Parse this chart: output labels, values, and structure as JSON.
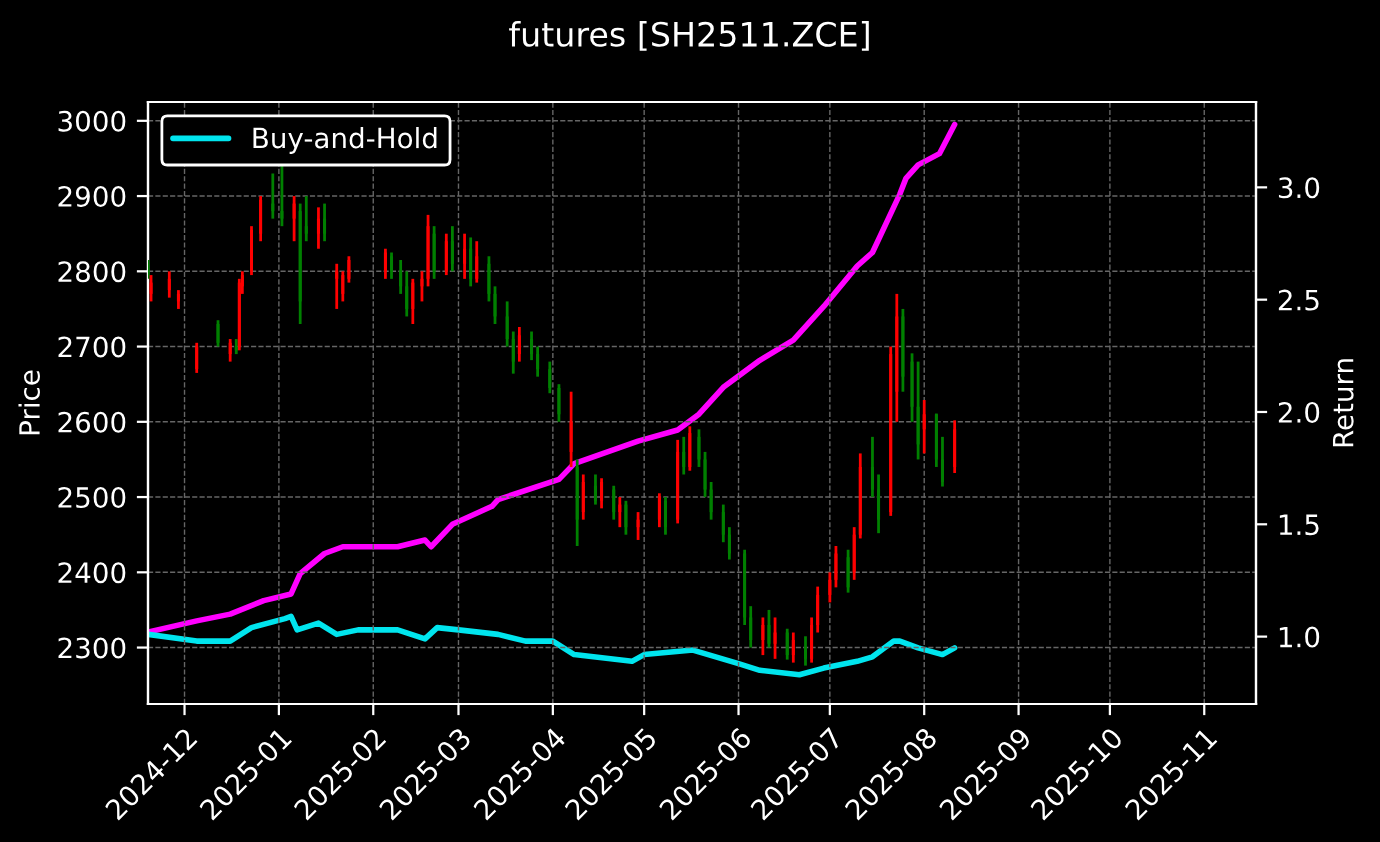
{
  "chart_data": {
    "type": "candlestick",
    "title": "futures [SH2511.ZCE]",
    "ylabel": "Price",
    "y2label": "Return",
    "x": [
      "2024-11-19",
      "2024-11-20",
      "2024-11-26",
      "2024-11-29",
      "2024-12-05",
      "2024-12-12",
      "2024-12-16",
      "2024-12-18",
      "2024-12-19",
      "2024-12-20",
      "2024-12-23",
      "2024-12-26",
      "2024-12-30",
      "2025-01-02",
      "2025-01-06",
      "2025-01-08",
      "2025-01-10",
      "2025-01-14",
      "2025-01-16",
      "2025-01-20",
      "2025-01-22",
      "2025-01-24",
      "2025-02-05",
      "2025-02-07",
      "2025-02-10",
      "2025-02-12",
      "2025-02-14",
      "2025-02-17",
      "2025-02-19",
      "2025-02-21",
      "2025-02-25",
      "2025-02-27",
      "2025-03-03",
      "2025-03-05",
      "2025-03-07",
      "2025-03-11",
      "2025-03-13",
      "2025-03-17",
      "2025-03-19",
      "2025-03-21",
      "2025-03-25",
      "2025-03-27",
      "2025-03-31",
      "2025-04-03",
      "2025-04-07",
      "2025-04-09",
      "2025-04-11",
      "2025-04-15",
      "2025-04-17",
      "2025-04-21",
      "2025-04-23",
      "2025-04-25",
      "2025-04-29",
      "2025-05-06",
      "2025-05-08",
      "2025-05-12",
      "2025-05-14",
      "2025-05-16",
      "2025-05-19",
      "2025-05-21",
      "2025-05-23",
      "2025-05-27",
      "2025-05-29",
      "2025-06-03",
      "2025-06-05",
      "2025-06-09",
      "2025-06-11",
      "2025-06-13",
      "2025-06-17",
      "2025-06-19",
      "2025-06-23",
      "2025-06-25",
      "2025-06-27",
      "2025-07-01",
      "2025-07-03",
      "2025-07-07",
      "2025-07-09",
      "2025-07-11",
      "2025-07-15",
      "2025-07-17",
      "2025-07-21",
      "2025-07-23",
      "2025-07-25",
      "2025-07-28",
      "2025-07-30",
      "2025-08-01",
      "2025-08-05",
      "2025-08-07",
      "2025-08-11"
    ],
    "ohlc": [
      [
        2810,
        2815,
        2790,
        2795
      ],
      [
        2770,
        2795,
        2760,
        2785
      ],
      [
        2775,
        2800,
        2765,
        2790
      ],
      [
        2760,
        2775,
        2750,
        2770
      ],
      [
        2670,
        2705,
        2665,
        2700
      ],
      [
        2730,
        2735,
        2700,
        2705
      ],
      [
        2690,
        2710,
        2680,
        2705
      ],
      [
        2700,
        2710,
        2690,
        2695
      ],
      [
        2700,
        2790,
        2695,
        2785
      ],
      [
        2780,
        2800,
        2770,
        2795
      ],
      [
        2800,
        2860,
        2795,
        2855
      ],
      [
        2850,
        2900,
        2840,
        2895
      ],
      [
        2890,
        2930,
        2870,
        2880
      ],
      [
        2880,
        2940,
        2860,
        2870
      ],
      [
        2870,
        2900,
        2840,
        2890
      ],
      [
        2880,
        2890,
        2730,
        2760
      ],
      [
        2860,
        2900,
        2840,
        2850
      ],
      [
        2850,
        2885,
        2830,
        2870
      ],
      [
        2870,
        2890,
        2840,
        2850
      ],
      [
        2790,
        2810,
        2750,
        2800
      ],
      [
        2770,
        2800,
        2760,
        2795
      ],
      [
        2790,
        2820,
        2785,
        2815
      ],
      [
        2800,
        2830,
        2790,
        2825
      ],
      [
        2820,
        2825,
        2790,
        2800
      ],
      [
        2800,
        2815,
        2770,
        2780
      ],
      [
        2780,
        2800,
        2740,
        2750
      ],
      [
        2750,
        2790,
        2730,
        2785
      ],
      [
        2780,
        2800,
        2760,
        2790
      ],
      [
        2790,
        2875,
        2780,
        2860
      ],
      [
        2850,
        2860,
        2790,
        2800
      ],
      [
        2800,
        2850,
        2795,
        2840
      ],
      [
        2840,
        2860,
        2800,
        2810
      ],
      [
        2810,
        2850,
        2790,
        2830
      ],
      [
        2830,
        2845,
        2780,
        2790
      ],
      [
        2790,
        2840,
        2785,
        2820
      ],
      [
        2810,
        2820,
        2760,
        2770
      ],
      [
        2770,
        2780,
        2730,
        2740
      ],
      [
        2740,
        2760,
        2700,
        2710
      ],
      [
        2710,
        2720,
        2664,
        2680
      ],
      [
        2690,
        2726,
        2680,
        2715
      ],
      [
        2710,
        2720,
        2682,
        2690
      ],
      [
        2690,
        2700,
        2660,
        2670
      ],
      [
        2670,
        2680,
        2638,
        2645
      ],
      [
        2645,
        2650,
        2600,
        2610
      ],
      [
        2560,
        2640,
        2540,
        2600
      ],
      [
        2540,
        2550,
        2435,
        2470
      ],
      [
        2480,
        2530,
        2470,
        2520
      ],
      [
        2515,
        2530,
        2490,
        2495
      ],
      [
        2495,
        2525,
        2485,
        2520
      ],
      [
        2510,
        2515,
        2470,
        2480
      ],
      [
        2480,
        2500,
        2460,
        2490
      ],
      [
        2490,
        2495,
        2450,
        2460
      ],
      [
        2460,
        2480,
        2443,
        2470
      ],
      [
        2470,
        2505,
        2460,
        2500
      ],
      [
        2495,
        2500,
        2450,
        2460
      ],
      [
        2470,
        2576,
        2465,
        2560
      ],
      [
        2560,
        2580,
        2530,
        2540
      ],
      [
        2540,
        2594,
        2535,
        2585
      ],
      [
        2580,
        2590,
        2540,
        2550
      ],
      [
        2550,
        2560,
        2500,
        2510
      ],
      [
        2510,
        2520,
        2470,
        2480
      ],
      [
        2480,
        2490,
        2440,
        2450
      ],
      [
        2450,
        2460,
        2417,
        2425
      ],
      [
        2425,
        2430,
        2330,
        2340
      ],
      [
        2340,
        2355,
        2300,
        2310
      ],
      [
        2310,
        2340,
        2290,
        2330
      ],
      [
        2330,
        2350,
        2300,
        2305
      ],
      [
        2305,
        2340,
        2285,
        2320
      ],
      [
        2320,
        2325,
        2284,
        2290
      ],
      [
        2290,
        2320,
        2280,
        2310
      ],
      [
        2300,
        2315,
        2276,
        2285
      ],
      [
        2285,
        2340,
        2280,
        2330
      ],
      [
        2330,
        2381,
        2320,
        2370
      ],
      [
        2370,
        2400,
        2360,
        2390
      ],
      [
        2390,
        2435,
        2380,
        2425
      ],
      [
        2420,
        2430,
        2373,
        2380
      ],
      [
        2400,
        2460,
        2390,
        2450
      ],
      [
        2450,
        2558,
        2445,
        2540
      ],
      [
        2540,
        2580,
        2500,
        2510
      ],
      [
        2510,
        2530,
        2452,
        2470
      ],
      [
        2480,
        2700,
        2475,
        2690
      ],
      [
        2640,
        2770,
        2600,
        2740
      ],
      [
        2740,
        2750,
        2640,
        2660
      ],
      [
        2680,
        2691,
        2600,
        2620
      ],
      [
        2620,
        2680,
        2550,
        2570
      ],
      [
        2590,
        2629,
        2558,
        2610
      ],
      [
        2610,
        2611,
        2540,
        2550
      ],
      [
        2550,
        2580,
        2514,
        2520
      ],
      [
        2540,
        2602,
        2532,
        2590
      ]
    ],
    "colors": [
      "#008000",
      "#ff0000",
      "#ff0000",
      "#ff0000",
      "#ff0000",
      "#008000",
      "#ff0000",
      "#008000",
      "#ff0000",
      "#ff0000",
      "#ff0000",
      "#ff0000",
      "#008000",
      "#008000",
      "#ff0000",
      "#008000",
      "#008000",
      "#ff0000",
      "#008000",
      "#ff0000",
      "#ff0000",
      "#ff0000",
      "#ff0000",
      "#008000",
      "#008000",
      "#008000",
      "#ff0000",
      "#ff0000",
      "#ff0000",
      "#008000",
      "#ff0000",
      "#008000",
      "#ff0000",
      "#008000",
      "#ff0000",
      "#008000",
      "#008000",
      "#008000",
      "#008000",
      "#ff0000",
      "#008000",
      "#008000",
      "#008000",
      "#008000",
      "#ff0000",
      "#008000",
      "#ff0000",
      "#008000",
      "#ff0000",
      "#008000",
      "#ff0000",
      "#008000",
      "#ff0000",
      "#ff0000",
      "#008000",
      "#ff0000",
      "#008000",
      "#ff0000",
      "#008000",
      "#008000",
      "#008000",
      "#008000",
      "#008000",
      "#008000",
      "#008000",
      "#ff0000",
      "#008000",
      "#ff0000",
      "#008000",
      "#ff0000",
      "#008000",
      "#ff0000",
      "#ff0000",
      "#ff0000",
      "#ff0000",
      "#008000",
      "#ff0000",
      "#ff0000",
      "#008000",
      "#008000",
      "#ff0000",
      "#ff0000",
      "#008000",
      "#008000",
      "#008000",
      "#ff0000",
      "#008000",
      "#008000",
      "#ff0000"
    ],
    "series": [
      {
        "type": "line",
        "axis": "y2",
        "color": "#ff00ff",
        "x": [
          "2024-11-19",
          "2024-12-05",
          "2024-12-16",
          "2024-12-27",
          "2025-01-05",
          "2025-01-08",
          "2025-01-16",
          "2025-01-22",
          "2025-02-09",
          "2025-02-18",
          "2025-02-20",
          "2025-02-27",
          "2025-03-12",
          "2025-03-14",
          "2025-04-03",
          "2025-04-08",
          "2025-04-29",
          "2025-05-12",
          "2025-05-19",
          "2025-05-27",
          "2025-06-08",
          "2025-06-19",
          "2025-06-29",
          "2025-07-10",
          "2025-07-15",
          "2025-07-24",
          "2025-07-26",
          "2025-07-30",
          "2025-08-06",
          "2025-08-11"
        ],
        "values": [
          1.02,
          1.07,
          1.1,
          1.16,
          1.19,
          1.28,
          1.37,
          1.4,
          1.4,
          1.43,
          1.4,
          1.5,
          1.58,
          1.61,
          1.7,
          1.77,
          1.87,
          1.92,
          1.99,
          2.11,
          2.23,
          2.32,
          2.47,
          2.65,
          2.71,
          2.97,
          3.04,
          3.1,
          3.15,
          3.28
        ]
      },
      {
        "name": "Buy-and-Hold",
        "type": "line",
        "axis": "y2",
        "color": "#00e5ee",
        "x": [
          "2024-11-19",
          "2024-12-05",
          "2024-12-16",
          "2024-12-23",
          "2025-01-03",
          "2025-01-05",
          "2025-01-07",
          "2025-01-14",
          "2025-01-20",
          "2025-01-27",
          "2025-02-09",
          "2025-02-18",
          "2025-02-22",
          "2025-03-01",
          "2025-03-14",
          "2025-03-23",
          "2025-04-01",
          "2025-04-08",
          "2025-04-27",
          "2025-05-01",
          "2025-05-17",
          "2025-06-01",
          "2025-06-08",
          "2025-06-21",
          "2025-06-29",
          "2025-07-10",
          "2025-07-15",
          "2025-07-22",
          "2025-07-24",
          "2025-07-30",
          "2025-08-07",
          "2025-08-11"
        ],
        "values": [
          1.01,
          0.98,
          0.98,
          1.04,
          1.08,
          1.09,
          1.03,
          1.06,
          1.01,
          1.03,
          1.03,
          0.99,
          1.04,
          1.03,
          1.01,
          0.98,
          0.98,
          0.92,
          0.89,
          0.92,
          0.94,
          0.88,
          0.85,
          0.83,
          0.86,
          0.89,
          0.91,
          0.98,
          0.98,
          0.95,
          0.92,
          0.95
        ]
      }
    ],
    "xlim": [
      "2024-11-19",
      "2025-11-18"
    ],
    "xticks": [
      "2024-12",
      "2025-01",
      "2025-02",
      "2025-03",
      "2025-04",
      "2025-05",
      "2025-06",
      "2025-07",
      "2025-08",
      "2025-09",
      "2025-10",
      "2025-11"
    ],
    "ylim": [
      2225,
      3025
    ],
    "yticks": [
      2300,
      2400,
      2500,
      2600,
      2700,
      2800,
      2900,
      3000
    ],
    "y2lim": [
      0.7,
      3.38
    ],
    "y2ticks": [
      {
        "value": 1,
        "label": "1.0"
      },
      1.5,
      {
        "value": 2,
        "label": "2.0"
      },
      2.5,
      {
        "value": 3,
        "label": "3.0"
      }
    ],
    "grid": true,
    "legend": "top left"
  }
}
